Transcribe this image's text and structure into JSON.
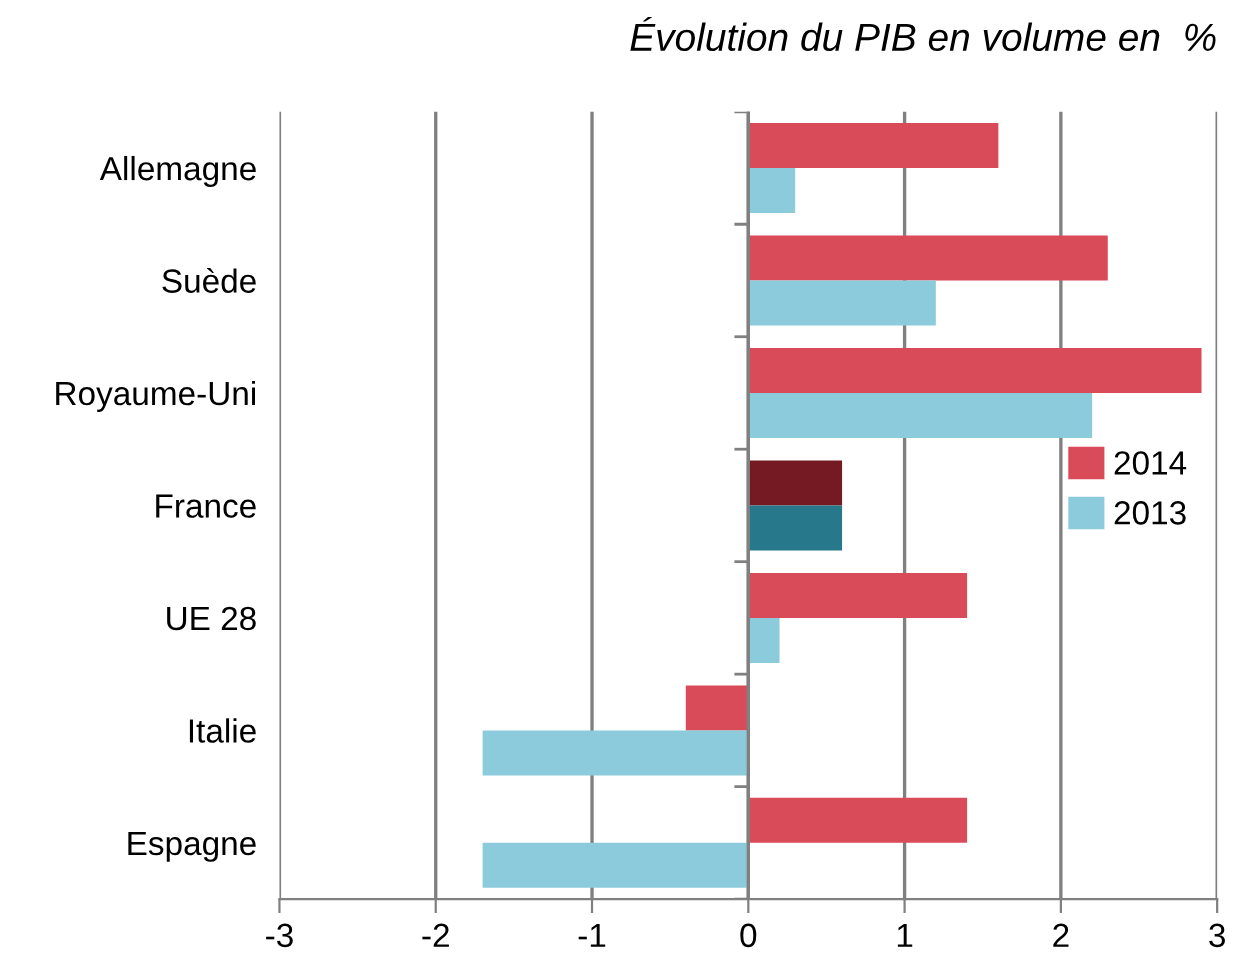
{
  "chart_data": {
    "type": "bar",
    "orientation": "horizontal",
    "title": "Évolution du PIB en volume en  %",
    "categories": [
      "Allemagne",
      "Suède",
      "Royaume-Uni",
      "France",
      "UE 28",
      "Italie",
      "Espagne"
    ],
    "series": [
      {
        "name": "2014",
        "color": "#d94b58",
        "colors": [
          "#d94b58",
          "#d94b58",
          "#d94b58",
          "#751a22",
          "#d94b58",
          "#d94b58",
          "#d94b58"
        ],
        "values": [
          1.6,
          2.3,
          2.9,
          0.6,
          1.4,
          -0.4,
          1.4
        ]
      },
      {
        "name": "2013",
        "color": "#8ccbdc",
        "colors": [
          "#8ccbdc",
          "#8ccbdc",
          "#8ccbdc",
          "#27788a",
          "#8ccbdc",
          "#8ccbdc",
          "#8ccbdc"
        ],
        "values": [
          0.3,
          1.2,
          2.2,
          0.6,
          0.2,
          -1.7,
          -1.7
        ]
      }
    ],
    "xlim": [
      -3,
      3
    ],
    "xticks": [
      -3,
      -2,
      -1,
      0,
      1,
      2,
      3
    ],
    "grid": "x",
    "legend": "right"
  }
}
